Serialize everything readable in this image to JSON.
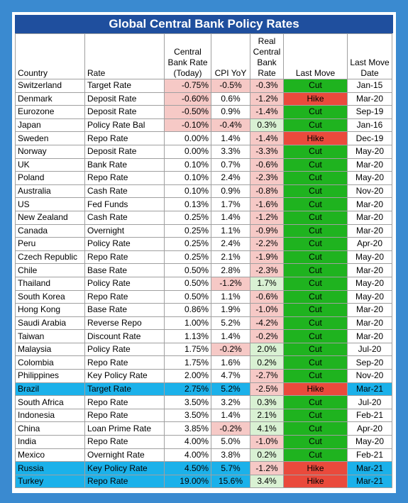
{
  "title": "Global Central Bank Policy Rates",
  "table": {
    "headers": [
      "Country",
      "Rate",
      "Central\nBank Rate\n(Today)",
      "CPI YoY",
      "Real\nCentral\nBank\nRate",
      "Last Move",
      "Last Move\nDate"
    ],
    "rows": [
      [
        "Switzerland",
        "Target Rate",
        "-0.75%",
        "-0.5%",
        "-0.3%",
        "Cut",
        "Jan-15"
      ],
      [
        "Denmark",
        "Deposit Rate",
        "-0.60%",
        "0.6%",
        "-1.2%",
        "Hike",
        "Mar-20"
      ],
      [
        "Eurozone",
        "Deposit Rate",
        "-0.50%",
        "0.9%",
        "-1.4%",
        "Cut",
        "Sep-19"
      ],
      [
        "Japan",
        "Policy Rate Bal",
        "-0.10%",
        "-0.4%",
        "0.3%",
        "Cut",
        "Jan-16"
      ],
      [
        "Sweden",
        "Repo Rate",
        "0.00%",
        "1.4%",
        "-1.4%",
        "Hike",
        "Dec-19"
      ],
      [
        "Norway",
        "Deposit Rate",
        "0.00%",
        "3.3%",
        "-3.3%",
        "Cut",
        "May-20"
      ],
      [
        "UK",
        "Bank Rate",
        "0.10%",
        "0.7%",
        "-0.6%",
        "Cut",
        "Mar-20"
      ],
      [
        "Poland",
        "Repo Rate",
        "0.10%",
        "2.4%",
        "-2.3%",
        "Cut",
        "May-20"
      ],
      [
        "Australia",
        "Cash Rate",
        "0.10%",
        "0.9%",
        "-0.8%",
        "Cut",
        "Nov-20"
      ],
      [
        "US",
        "Fed Funds",
        "0.13%",
        "1.7%",
        "-1.6%",
        "Cut",
        "Mar-20"
      ],
      [
        "New Zealand",
        "Cash Rate",
        "0.25%",
        "1.4%",
        "-1.2%",
        "Cut",
        "Mar-20"
      ],
      [
        "Canada",
        "Overnight",
        "0.25%",
        "1.1%",
        "-0.9%",
        "Cut",
        "Mar-20"
      ],
      [
        "Peru",
        "Policy Rate",
        "0.25%",
        "2.4%",
        "-2.2%",
        "Cut",
        "Apr-20"
      ],
      [
        "Czech Republic",
        "Repo Rate",
        "0.25%",
        "2.1%",
        "-1.9%",
        "Cut",
        "May-20"
      ],
      [
        "Chile",
        "Base Rate",
        "0.50%",
        "2.8%",
        "-2.3%",
        "Cut",
        "Mar-20"
      ],
      [
        "Thailand",
        "Policy Rate",
        "0.50%",
        "-1.2%",
        "1.7%",
        "Cut",
        "May-20"
      ],
      [
        "South Korea",
        "Repo Rate",
        "0.50%",
        "1.1%",
        "-0.6%",
        "Cut",
        "May-20"
      ],
      [
        "Hong Kong",
        "Base Rate",
        "0.86%",
        "1.9%",
        "-1.0%",
        "Cut",
        "Mar-20"
      ],
      [
        "Saudi Arabia",
        "Reverse Repo",
        "1.00%",
        "5.2%",
        "-4.2%",
        "Cut",
        "Mar-20"
      ],
      [
        "Taiwan",
        "Discount Rate",
        "1.13%",
        "1.4%",
        "-0.2%",
        "Cut",
        "Mar-20"
      ],
      [
        "Malaysia",
        "Policy Rate",
        "1.75%",
        "-0.2%",
        "2.0%",
        "Cut",
        "Jul-20"
      ],
      [
        "Colombia",
        "Repo Rate",
        "1.75%",
        "1.6%",
        "0.2%",
        "Cut",
        "Sep-20"
      ],
      [
        "Philippines",
        "Key Policy Rate",
        "2.00%",
        "4.7%",
        "-2.7%",
        "Cut",
        "Nov-20"
      ],
      [
        "Brazil",
        "Target Rate",
        "2.75%",
        "5.2%",
        "-2.5%",
        "Hike",
        "Mar-21"
      ],
      [
        "South Africa",
        "Repo Rate",
        "3.50%",
        "3.2%",
        "0.3%",
        "Cut",
        "Jul-20"
      ],
      [
        "Indonesia",
        "Repo Rate",
        "3.50%",
        "1.4%",
        "2.1%",
        "Cut",
        "Feb-21"
      ],
      [
        "China",
        "Loan Prime Rate",
        "3.85%",
        "-0.2%",
        "4.1%",
        "Cut",
        "Apr-20"
      ],
      [
        "India",
        "Repo Rate",
        "4.00%",
        "5.0%",
        "-1.0%",
        "Cut",
        "May-20"
      ],
      [
        "Mexico",
        "Overnight Rate",
        "4.00%",
        "3.8%",
        "0.2%",
        "Cut",
        "Feb-21"
      ],
      [
        "Russia",
        "Key Policy Rate",
        "4.50%",
        "5.7%",
        "-1.2%",
        "Hike",
        "Mar-21"
      ],
      [
        "Turkey",
        "Repo Rate",
        "19.00%",
        "15.6%",
        "3.4%",
        "Hike",
        "Mar-21"
      ]
    ],
    "highlighted_rows": [
      23,
      29,
      30
    ],
    "highlight_color": "#1bb1ea"
  }
}
